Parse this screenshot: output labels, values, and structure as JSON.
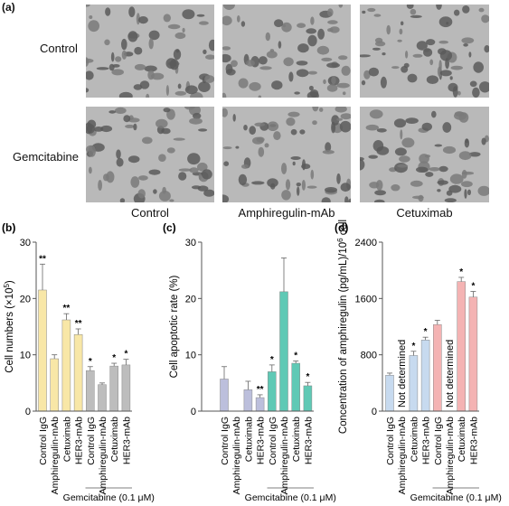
{
  "panel_a": {
    "label": "(a)",
    "rows": [
      "Control",
      "Gemcitabine"
    ],
    "columns": [
      "Control",
      "Amphiregulin-mAb",
      "Cetuximab"
    ]
  },
  "chart_data": [
    {
      "panel": "(b)",
      "type": "bar",
      "ylabel": "Cell numbers (×10⁵)",
      "ylabel_main": "Cell numbers (×10",
      "ylabel_sup": "5",
      "ylabel_end": ")",
      "ylim": [
        0,
        30
      ],
      "yticks": [
        0,
        10,
        20,
        30
      ],
      "categories": [
        "Control IgG",
        "Amphiregulin-mAb",
        "Cetuximab",
        "HER3-mAb",
        "Control IgG",
        "Amphiregulin-mAb",
        "Cetuximab",
        "HER3-mAb"
      ],
      "values": [
        21.5,
        9.3,
        16.2,
        13.6,
        7.2,
        4.7,
        8.0,
        8.2
      ],
      "errors": [
        4.6,
        0.7,
        1.1,
        1.0,
        0.7,
        0.3,
        0.5,
        1.0
      ],
      "significance": [
        "**",
        "",
        "**",
        "**",
        "*",
        "",
        "*",
        "*"
      ],
      "colors": [
        "#f8e7a7",
        "#f8e7a7",
        "#f8e7a7",
        "#f8e7a7",
        "#bdbdbd",
        "#bdbdbd",
        "#bdbdbd",
        "#bdbdbd"
      ],
      "group_label": "Gemcitabine (0.1 μM)"
    },
    {
      "panel": "(c)",
      "type": "bar",
      "ylabel": "Cell apoptotic rate (%)",
      "ylim": [
        0,
        30
      ],
      "yticks": [
        0,
        10,
        20,
        30
      ],
      "categories": [
        "Control IgG",
        "Amphiregulin-mAb",
        "Cetuximab",
        "HER3-mAb",
        "Control IgG",
        "Amphiregulin-mAb",
        "Cetuximab",
        "HER3-mAb"
      ],
      "values": [
        5.7,
        0,
        3.8,
        2.4,
        7.0,
        21.2,
        8.5,
        4.5
      ],
      "errors": [
        2.2,
        0,
        1.5,
        0.5,
        1.2,
        6.0,
        0.4,
        0.6
      ],
      "significance": [
        "",
        "",
        "",
        "**",
        "*",
        "",
        "*",
        "*"
      ],
      "colors": [
        "#bcbfdc",
        "#bcbfdc",
        "#bcbfdc",
        "#bcbfdc",
        "#5fc9b5",
        "#5fc9b5",
        "#5fc9b5",
        "#5fc9b5"
      ],
      "group_label": "Gemcitabine (0.1 μM)"
    },
    {
      "panel": "(d)",
      "type": "bar",
      "ylabel": "Concentration of amphiregulin (pg/mL)/10⁶ cell",
      "ylabel_main": "Concentration of amphiregulin (pg/mL)/10",
      "ylabel_sup": "6",
      "ylabel_end": " cell",
      "ylim": [
        0,
        2400
      ],
      "yticks": [
        0,
        800,
        1600,
        2400
      ],
      "categories": [
        "Control IgG",
        "Amphiregulin-mAb",
        "Cetuximab",
        "HER3-mAb",
        "Control IgG",
        "Amphiregulin-mAb",
        "Cetuximab",
        "HER3-mAb"
      ],
      "values": [
        510,
        null,
        790,
        1010,
        1230,
        null,
        1840,
        1620
      ],
      "errors": [
        30,
        0,
        60,
        40,
        60,
        0,
        60,
        80
      ],
      "significance": [
        "",
        "",
        "*",
        "*",
        "",
        "",
        "*",
        "*"
      ],
      "annotations": [
        "",
        "Not determined",
        "",
        "",
        "",
        "Not determined",
        "",
        ""
      ],
      "colors": [
        "#c7daef",
        "#c7daef",
        "#c7daef",
        "#c7daef",
        "#f4b3b3",
        "#f4b3b3",
        "#f4b3b3",
        "#f4b3b3"
      ],
      "group_label": "Gemcitabine (0.1 μM)"
    }
  ]
}
